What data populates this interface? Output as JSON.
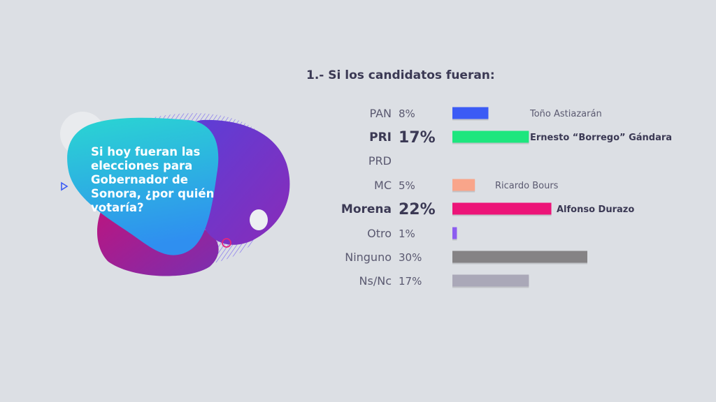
{
  "question": "Si hoy fueran las elecciones para Gobernador de Sonora, ¿por quién votaría?",
  "colors": {
    "background": "#dcdfe4",
    "text_dark": "#3b3954",
    "text_mid": "#5a5970"
  },
  "chart_data": {
    "type": "bar",
    "orientation": "horizontal",
    "title": "1.- Si los candidatos fueran:",
    "unit": "%",
    "xlim": [
      0,
      30
    ],
    "rows": [
      {
        "party": "PAN",
        "value": 8,
        "label": "8%",
        "candidate": "Toño Astiazarán",
        "color": "#3b5bf5",
        "bold": false
      },
      {
        "party": "PRI",
        "value": 17,
        "label": "17%",
        "candidate": "Ernesto “Borrego” Gándara",
        "color": "#1de67e",
        "bold": true
      },
      {
        "party": "PRD",
        "value": null,
        "label": "",
        "candidate": "",
        "color": "#999999",
        "bold": false
      },
      {
        "party": "MC",
        "value": 5,
        "label": "5%",
        "candidate": "Ricardo Bours",
        "color": "#f9a58a",
        "bold": false
      },
      {
        "party": "Morena",
        "value": 22,
        "label": "22%",
        "candidate": "Alfonso Durazo",
        "color": "#ec1478",
        "bold": true
      },
      {
        "party": "Otro",
        "value": 1,
        "label": "1%",
        "candidate": "",
        "color": "#8c5cf0",
        "bold": false
      },
      {
        "party": "Ninguno",
        "value": 30,
        "label": "30%",
        "candidate": "",
        "color": "#858385",
        "bold": false
      },
      {
        "party": "Ns/Nc",
        "value": 17,
        "label": "17%",
        "candidate": "",
        "color": "#aaa8b8",
        "bold": false
      }
    ]
  }
}
